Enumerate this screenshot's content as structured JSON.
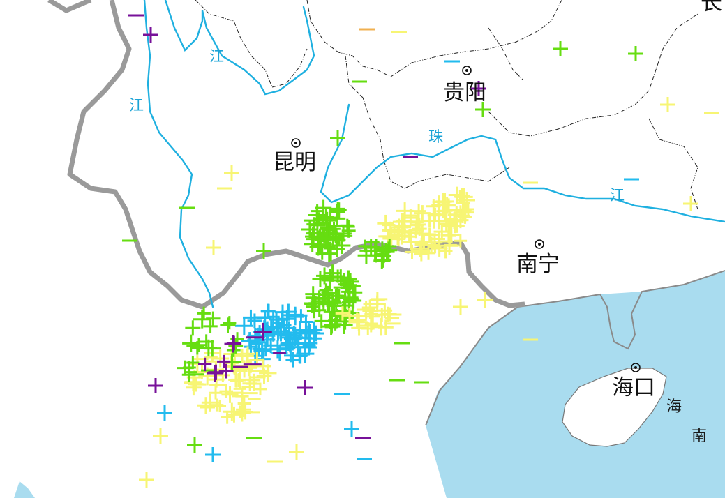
{
  "map": {
    "colors": {
      "sea": "#a9dcef",
      "river": "#1fb0e0",
      "border": "#9a9a9a",
      "lightning_green": "#66dd11",
      "lightning_yellow": "#f7f574",
      "lightning_cyan": "#22bbee",
      "lightning_purple": "#771199",
      "lightning_orange": "#f0b050"
    },
    "cities": [
      {
        "name": "贵阳",
        "icon": "city-dot-icon"
      },
      {
        "name": "昆明",
        "icon": "city-dot-icon"
      },
      {
        "name": "南宁",
        "icon": "city-dot-icon"
      },
      {
        "name": "海口",
        "icon": "city-dot-icon"
      }
    ],
    "partial_label": "长",
    "river_labels": [
      "江",
      "江",
      "珠",
      "江"
    ],
    "sea_labels": [
      "海",
      "南"
    ],
    "lightning_legend": {
      "positive_symbol": "+",
      "negative_symbol": "−"
    }
  }
}
